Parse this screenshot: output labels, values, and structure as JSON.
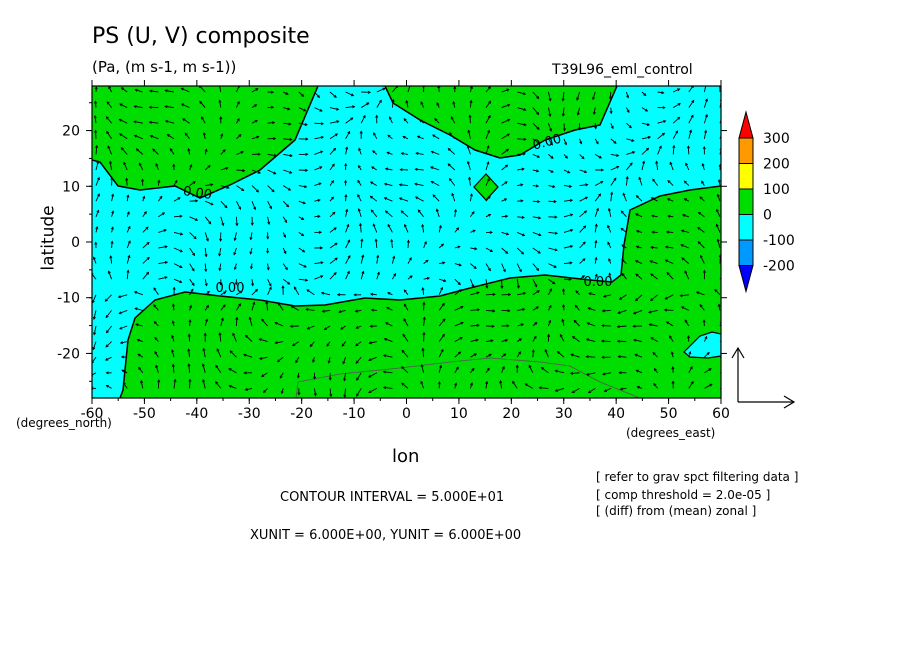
{
  "chart_data": {
    "type": "contour",
    "title": "PS (U, V) composite",
    "units_line": "(Pa, (m s-1, m s-1))",
    "run_name": "T39L96_eml_control",
    "xlabel": "lon",
    "ylabel": "latitude",
    "x_unit_label": "(degrees_east)",
    "y_unit_label": "(degrees_north)",
    "xlim": [
      -60,
      60
    ],
    "ylim": [
      -28,
      28
    ],
    "x_ticks": [
      -60,
      -50,
      -40,
      -30,
      -20,
      -10,
      0,
      10,
      20,
      30,
      40,
      50,
      60
    ],
    "y_ticks": [
      -20,
      -10,
      0,
      10,
      20
    ],
    "contour_labels": [
      "0.00",
      "0.00",
      "0.00",
      "0.00"
    ],
    "colorbar": {
      "ticks": [
        300,
        200,
        100,
        0,
        -100,
        -200
      ],
      "colors": [
        "#ff0000",
        "#ff9900",
        "#ffff00",
        "#00dd00",
        "#00ffff",
        "#0099ff",
        "#0000ff"
      ]
    },
    "fill_colors": {
      "positive": "#00dd00",
      "negative": "#00ffff"
    },
    "contour_interval": "CONTOUR INTERVAL = 5.000E+01",
    "vector_units": "XUNIT = 6.000E+00, YUNIT = 6.000E+00",
    "notes": [
      "[ refer to grav spct filtering data ]",
      "[ comp threshold = 2.0e-05 ]",
      "[ (diff) from (mean) zonal ]"
    ]
  }
}
